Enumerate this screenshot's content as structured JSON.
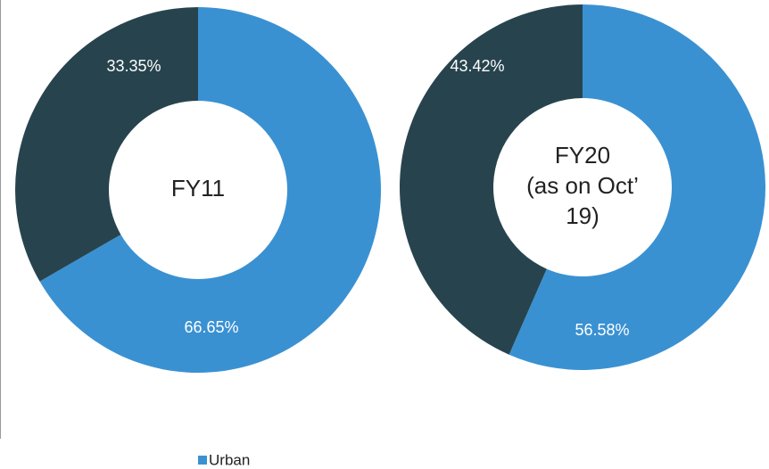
{
  "chart_data": [
    {
      "type": "donut",
      "title": [
        "FY11"
      ],
      "categories": [
        "Urban",
        null
      ],
      "values": [
        66.65,
        33.35
      ],
      "value_labels": [
        "66.65%",
        "33.35%"
      ],
      "colors": [
        "#3a91d2",
        "#27444e"
      ],
      "legend": "bottom"
    },
    {
      "type": "donut",
      "title": [
        "FY20",
        "(as on Oct’",
        "19)"
      ],
      "categories": [
        "Urban",
        null
      ],
      "values": [
        56.58,
        43.42
      ],
      "value_labels": [
        "56.58%",
        "43.42%"
      ],
      "colors": [
        "#3a91d2",
        "#27444e"
      ]
    }
  ]
}
